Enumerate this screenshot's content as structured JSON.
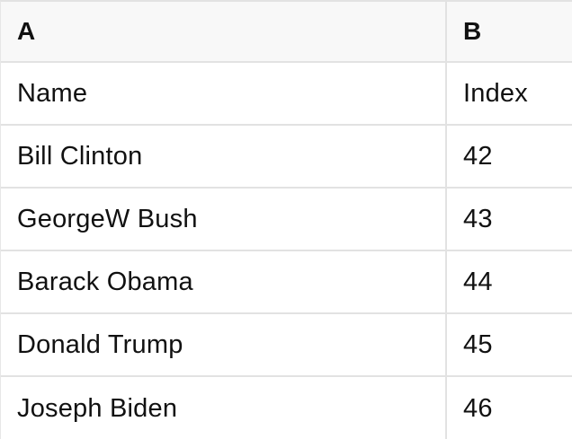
{
  "sheet": {
    "column_headers": [
      "A",
      "B"
    ],
    "rows": [
      [
        "Name",
        "Index"
      ],
      [
        "Bill Clinton",
        "42"
      ],
      [
        "GeorgeW Bush",
        "43"
      ],
      [
        "Barack Obama",
        "44"
      ],
      [
        "Donald Trump",
        "45"
      ],
      [
        "Joseph Biden",
        "46"
      ]
    ],
    "colors": {
      "header_background": "#f8f8f8",
      "row_background": "#ffffff",
      "grid_border": "#e2e2e2",
      "text": "#111111"
    }
  }
}
